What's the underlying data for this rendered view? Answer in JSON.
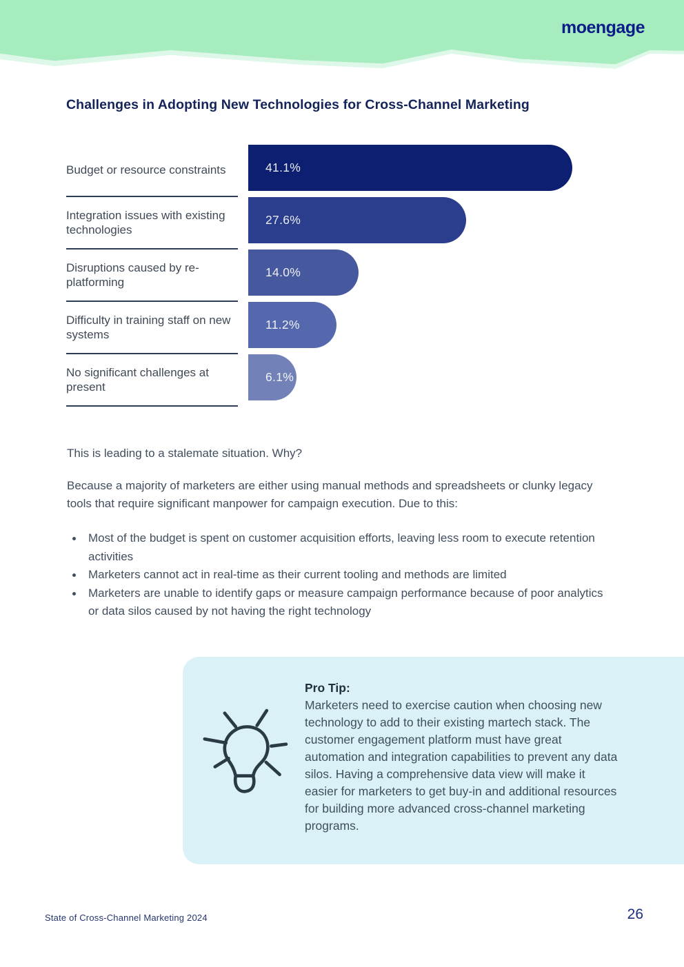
{
  "header": {
    "logo": "moengage"
  },
  "title": "Challenges in Adopting New Technologies for Cross-Channel Marketing",
  "chart_data": {
    "type": "bar",
    "orientation": "horizontal",
    "title": "Challenges in Adopting New Technologies for Cross-Channel Marketing",
    "categories": [
      "Budget or resource constraints",
      "Integration issues with existing technologies",
      "Disruptions caused by re-platforming",
      "Difficulty in training staff on new systems",
      "No significant challenges at present"
    ],
    "values": [
      41.1,
      27.6,
      14.0,
      11.2,
      6.1
    ],
    "labels": [
      "41.1%",
      "27.6%",
      "14.0%",
      "11.2%",
      "6.1%"
    ],
    "bar_colors": [
      "#0d1f70",
      "#2b3e8e",
      "#46589e",
      "#5568ad",
      "#7282b8"
    ],
    "xlabel": "",
    "ylabel": "",
    "xlim": [
      0,
      45
    ],
    "grid": false,
    "legend": "none",
    "value_label_position": "inside-left"
  },
  "body": {
    "lead": "This is leading to a stalemate situation. Why?",
    "paragraph": "Because a majority of marketers are either using manual methods and spreadsheets or clunky legacy tools that require significant manpower for campaign execution. Due to this:",
    "bullets": [
      "Most of the budget is spent on customer acquisition efforts, leaving less room to execute retention activities",
      "Marketers cannot act in real-time as their current tooling and methods are limited",
      "Marketers are unable to identify gaps or measure campaign performance because of poor analytics or data silos caused by not having the right technology"
    ]
  },
  "protip": {
    "heading": "Pro Tip:",
    "text": "Marketers need to exercise caution when choosing new technology to add to their existing martech stack. The customer engagement platform must have great automation and integration capabilities to prevent any data silos. Having a comprehensive data view will make it easier for marketers to get buy-in and additional resources for building more advanced cross-channel marketing programs.",
    "icon": "lightbulb-icon",
    "background": "#daf2f7"
  },
  "footer": {
    "left": "State of Cross-Channel Marketing 2024",
    "page_number": "26"
  },
  "colors": {
    "header_green": "#a7ecbf",
    "header_green_light": "#ddf7e8",
    "logo_navy": "#0a1c87",
    "title_navy": "#14235a",
    "body_text": "#414e5e",
    "divider": "#2e3d55",
    "protip_bg": "#daf2f7"
  }
}
